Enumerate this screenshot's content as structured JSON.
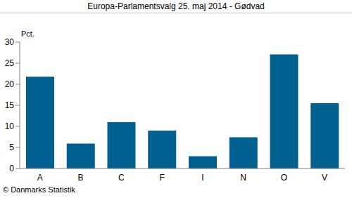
{
  "chart_data": {
    "type": "bar",
    "title": "Europa-Parlamentsvalg 25. maj 2014 - Gødvad",
    "ylabel": "Pct.",
    "annotations": [
      "© Danmarks Statistik"
    ],
    "categories": [
      "A",
      "B",
      "C",
      "F",
      "I",
      "N",
      "O",
      "V"
    ],
    "values": [
      21.8,
      5.9,
      11.0,
      9.0,
      2.9,
      7.4,
      27.1,
      15.5
    ],
    "color": "#00608f",
    "ylim": [
      0,
      30
    ],
    "yticks": [
      0,
      5,
      10,
      15,
      20,
      25,
      30
    ],
    "grid": false
  }
}
